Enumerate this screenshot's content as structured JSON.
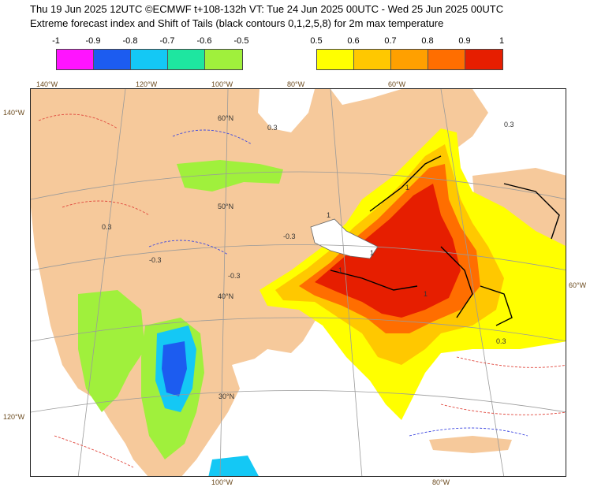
{
  "title": {
    "line1": "Thu 19 Jun 2025 12UTC ©ECMWF t+108-132h  VT: Tue 24 Jun 2025 00UTC - Wed 25 Jun 2025 00UTC",
    "line2": "Extreme forecast index and Shift of Tails (black contours 0,1,2,5,8) for 2m max temperature"
  },
  "legend_negative": {
    "labels": [
      "-1",
      "-0.9",
      "-0.8",
      "-0.7",
      "-0.6",
      "-0.5"
    ],
    "colors": [
      "#ff14ff",
      "#1c5cf0",
      "#14c8f5",
      "#1ee6a0",
      "#a0f03c"
    ]
  },
  "legend_positive": {
    "labels": [
      "0.5",
      "0.6",
      "0.7",
      "0.8",
      "0.9",
      "1"
    ],
    "colors": [
      "#ffff00",
      "#ffc800",
      "#ffa000",
      "#ff6e00",
      "#e61e00"
    ]
  },
  "map": {
    "land_color": "#f6c99b",
    "ocean_color": "#ffffff",
    "lon_labels_top": [
      "140°W",
      "120°W",
      "100°W",
      "80°W",
      "60°W"
    ],
    "lon_labels_bottom": [
      "100°W",
      "80°W"
    ],
    "lat_labels_left": [
      "140°W",
      "120°W"
    ],
    "lat_labels_right": [
      "60°W"
    ],
    "grid_labels": [
      "60°N",
      "50°N",
      "40°N",
      "30°N"
    ],
    "contour_labels": [
      "0.3",
      "-0.3",
      "-0.3",
      "-0.3",
      "0.3",
      "0.3",
      "0.3",
      "1",
      "1",
      "1",
      "1",
      "1"
    ]
  }
}
